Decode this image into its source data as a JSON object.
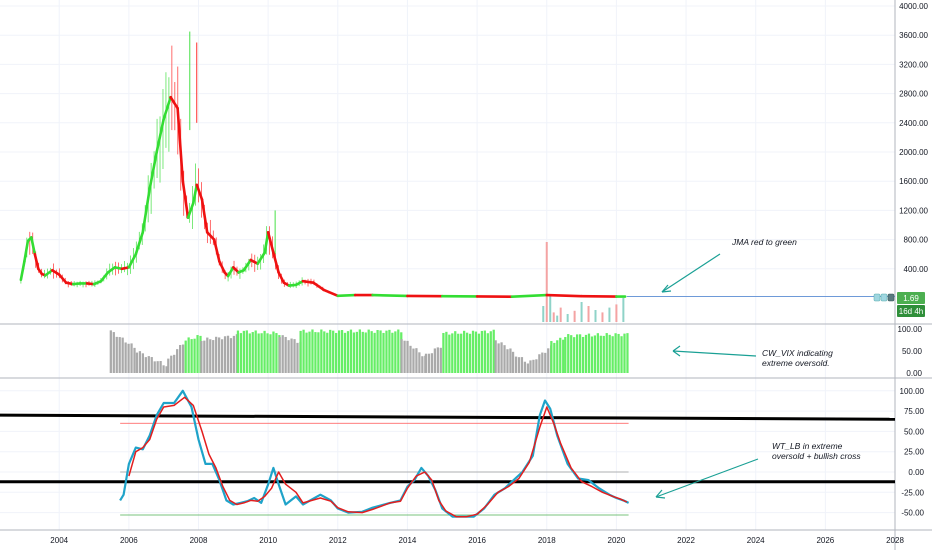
{
  "chart_data": [
    {
      "panel": "price",
      "type": "line",
      "yscale": "linear",
      "ylim": [
        0,
        4000
      ],
      "xlim": [
        2002.3,
        2028
      ],
      "y_ticks": [
        "4000.00",
        "3600.00",
        "3200.00",
        "2800.00",
        "2400.00",
        "2000.00",
        "1600.00",
        "1200.00",
        "800.00",
        "400.00"
      ],
      "x_ticks": [
        "2004",
        "2006",
        "2008",
        "2010",
        "2012",
        "2014",
        "2016",
        "2018",
        "2020",
        "2022",
        "2024",
        "2026",
        "2028"
      ],
      "price_label": "1.69",
      "countdown_label": "16d 4h",
      "colors": {
        "up": "#33dd33",
        "down": "#ff1a1a",
        "jma_up": "#33dd33",
        "jma_down": "#ee1111",
        "last_price": "#4caf50",
        "price_line": "#6e9ad8"
      },
      "jma": {
        "x": [
          2002.9,
          2003.0,
          2003.1,
          2003.2,
          2003.3,
          2003.4,
          2003.5,
          2003.6,
          2003.8,
          2004.0,
          2004.2,
          2004.4,
          2004.6,
          2004.8,
          2005.0,
          2005.2,
          2005.4,
          2005.6,
          2005.8,
          2006.0,
          2006.2,
          2006.4,
          2006.6,
          2006.8,
          2007.0,
          2007.2,
          2007.4,
          2007.55,
          2007.7,
          2007.85,
          2007.95,
          2008.1,
          2008.25,
          2008.45,
          2008.6,
          2008.75,
          2008.85,
          2009.0,
          2009.15,
          2009.3,
          2009.5,
          2009.7,
          2009.9,
          2010.0,
          2010.15,
          2010.3,
          2010.45,
          2010.6,
          2010.8,
          2011.0,
          2011.3,
          2011.6,
          2012.0,
          2012.5,
          2013.0,
          2014.0,
          2015.0,
          2016.0,
          2017.0,
          2018.0,
          2019.0,
          2020.0,
          2020.25
        ],
        "y": [
          250,
          500,
          780,
          830,
          600,
          400,
          330,
          310,
          380,
          320,
          210,
          190,
          200,
          200,
          190,
          230,
          350,
          420,
          400,
          420,
          600,
          900,
          1500,
          2000,
          2450,
          2750,
          2600,
          1600,
          1100,
          1300,
          1550,
          1350,
          900,
          800,
          500,
          350,
          300,
          420,
          350,
          380,
          520,
          470,
          620,
          900,
          620,
          350,
          210,
          170,
          180,
          230,
          210,
          110,
          30,
          40,
          40,
          28,
          25,
          22,
          18,
          40,
          25,
          20,
          20
        ],
        "up": [
          1,
          1,
          1,
          1,
          0,
          0,
          0,
          1,
          0,
          0,
          0,
          1,
          1,
          0,
          1,
          1,
          1,
          1,
          0,
          1,
          1,
          1,
          1,
          1,
          1,
          0,
          0,
          0,
          1,
          1,
          0,
          0,
          0,
          0,
          0,
          0,
          1,
          0,
          1,
          1,
          0,
          1,
          1,
          0,
          0,
          0,
          0,
          1,
          1,
          0,
          0,
          0,
          1,
          0,
          1,
          0,
          1,
          0,
          1,
          0,
          0,
          1
        ]
      },
      "volume": {
        "x": [
          2017.9,
          2018.0,
          2018.1,
          2018.2,
          2018.3,
          2018.4,
          2018.6,
          2018.8,
          2019.0,
          2019.2,
          2019.4,
          2019.6,
          2019.8,
          2020.0,
          2020.2
        ],
        "v": [
          20,
          100,
          35,
          12,
          8,
          18,
          10,
          14,
          25,
          20,
          15,
          12,
          18,
          22,
          30
        ]
      },
      "annotation": "JMA red to green"
    },
    {
      "panel": "cw_vix",
      "type": "bar",
      "ylim": [
        0,
        100
      ],
      "y_ticks": [
        "100.00",
        "50.00",
        "0.00"
      ],
      "colors": {
        "oversold": "#66ee66",
        "neutral": "#aaaaaa"
      },
      "segments": [
        {
          "from": 2005.45,
          "to": 2006.2,
          "start": 95,
          "end": 55,
          "oversold": false
        },
        {
          "from": 2006.2,
          "to": 2007.1,
          "start": 50,
          "end": 15,
          "oversold": false
        },
        {
          "from": 2007.1,
          "to": 2007.6,
          "start": 30,
          "end": 75,
          "oversold": false
        },
        {
          "from": 2007.6,
          "to": 2008.05,
          "start": 75,
          "end": 85,
          "oversold": true
        },
        {
          "from": 2008.05,
          "to": 2009.1,
          "start": 75,
          "end": 85,
          "oversold": false
        },
        {
          "from": 2009.1,
          "to": 2010.3,
          "start": 95,
          "end": 90,
          "oversold": true
        },
        {
          "from": 2010.3,
          "to": 2010.9,
          "start": 85,
          "end": 70,
          "oversold": false
        },
        {
          "from": 2010.9,
          "to": 2013.8,
          "start": 95,
          "end": 95,
          "oversold": true
        },
        {
          "from": 2013.8,
          "to": 2014.5,
          "start": 80,
          "end": 35,
          "oversold": false
        },
        {
          "from": 2014.5,
          "to": 2015.0,
          "start": 40,
          "end": 65,
          "oversold": false
        },
        {
          "from": 2015.0,
          "to": 2016.5,
          "start": 90,
          "end": 95,
          "oversold": true
        },
        {
          "from": 2016.5,
          "to": 2017.0,
          "start": 75,
          "end": 50,
          "oversold": false
        },
        {
          "from": 2017.0,
          "to": 2017.5,
          "start": 45,
          "end": 20,
          "oversold": false
        },
        {
          "from": 2017.5,
          "to": 2018.1,
          "start": 25,
          "end": 60,
          "oversold": false
        },
        {
          "from": 2018.1,
          "to": 2018.5,
          "start": 70,
          "end": 80,
          "oversold": true
        },
        {
          "from": 2018.5,
          "to": 2020.35,
          "start": 85,
          "end": 88,
          "oversold": true
        }
      ],
      "annotation_line1": "CW_VIX indicating",
      "annotation_line2": "extreme oversold."
    },
    {
      "panel": "wt_lb",
      "type": "line",
      "ylim": [
        -62,
        110
      ],
      "y_ticks": [
        "100.00",
        "75.00",
        "50.00",
        "25.00",
        "0.00",
        "-25.00",
        "-50.00"
      ],
      "levels": {
        "overbought": 60,
        "zero": 0,
        "oversold": -53
      },
      "level_colors": {
        "overbought": "#ff5252",
        "zero": "#999999",
        "oversold": "#4caf50"
      },
      "thick_lines": [
        {
          "x1": 2002.3,
          "y1": 70,
          "x2": 2028,
          "y2": 65
        },
        {
          "x1": 2002.3,
          "y1": -12,
          "x2": 2028,
          "y2": -12
        }
      ],
      "series": [
        {
          "color": "#1fa3c9",
          "x": [
            2005.75,
            2005.85,
            2006.0,
            2006.2,
            2006.4,
            2006.6,
            2006.8,
            2007.0,
            2007.3,
            2007.55,
            2007.8,
            2008.0,
            2008.2,
            2008.4,
            2008.6,
            2008.8,
            2009.0,
            2009.2,
            2009.4,
            2009.6,
            2009.8,
            2010.0,
            2010.15,
            2010.3,
            2010.5,
            2010.8,
            2011.0,
            2011.5,
            2011.8,
            2012.0,
            2012.3,
            2012.7,
            2013.0,
            2013.5,
            2013.8,
            2014.0,
            2014.2,
            2014.4,
            2014.6,
            2014.8,
            2015.0,
            2015.3,
            2015.6,
            2015.9,
            2016.2,
            2016.5,
            2016.8,
            2017.0,
            2017.3,
            2017.6,
            2017.8,
            2017.95,
            2018.1,
            2018.3,
            2018.6,
            2018.9,
            2019.2,
            2019.5,
            2019.8,
            2020.0,
            2020.2,
            2020.35
          ],
          "y": [
            -35,
            -28,
            10,
            30,
            28,
            45,
            70,
            85,
            85,
            100,
            80,
            40,
            10,
            10,
            -10,
            -35,
            -40,
            -38,
            -36,
            -32,
            -38,
            -15,
            5,
            -15,
            -40,
            -30,
            -40,
            -28,
            -35,
            -45,
            -50,
            -49,
            -44,
            -38,
            -35,
            -18,
            -10,
            5,
            -5,
            -22,
            -45,
            -55,
            -55,
            -55,
            -45,
            -28,
            -20,
            -12,
            0,
            20,
            70,
            88,
            78,
            45,
            10,
            -8,
            -10,
            -20,
            -28,
            -32,
            -35,
            -38
          ]
        },
        {
          "color": "#e31e1e",
          "x": [
            2006.0,
            2006.2,
            2006.4,
            2006.6,
            2006.8,
            2007.0,
            2007.3,
            2007.6,
            2007.85,
            2008.1,
            2008.3,
            2008.5,
            2008.7,
            2008.9,
            2009.1,
            2009.3,
            2009.5,
            2009.7,
            2009.9,
            2010.1,
            2010.3,
            2010.5,
            2010.8,
            2011.0,
            2011.5,
            2011.8,
            2012.0,
            2012.3,
            2012.7,
            2013.0,
            2013.5,
            2013.8,
            2014.0,
            2014.25,
            2014.5,
            2014.7,
            2014.9,
            2015.1,
            2015.4,
            2015.7,
            2016.0,
            2016.3,
            2016.6,
            2016.9,
            2017.2,
            2017.5,
            2017.8,
            2018.0,
            2018.2,
            2018.4,
            2018.7,
            2019.0,
            2019.3,
            2019.6,
            2019.9,
            2020.1,
            2020.3
          ],
          "y": [
            -5,
            25,
            30,
            40,
            65,
            80,
            82,
            92,
            82,
            50,
            22,
            5,
            -18,
            -35,
            -40,
            -38,
            -35,
            -36,
            -30,
            -20,
            0,
            -15,
            -25,
            -38,
            -32,
            -36,
            -44,
            -49,
            -50,
            -46,
            -38,
            -36,
            -20,
            -5,
            0,
            -10,
            -35,
            -48,
            -55,
            -55,
            -52,
            -40,
            -25,
            -18,
            -8,
            12,
            55,
            80,
            60,
            35,
            5,
            -12,
            -18,
            -25,
            -30,
            -33,
            -37
          ]
        }
      ],
      "annotation_line1": "WT_LB in extreme",
      "annotation_line2": "oversold + bullish cross"
    }
  ]
}
